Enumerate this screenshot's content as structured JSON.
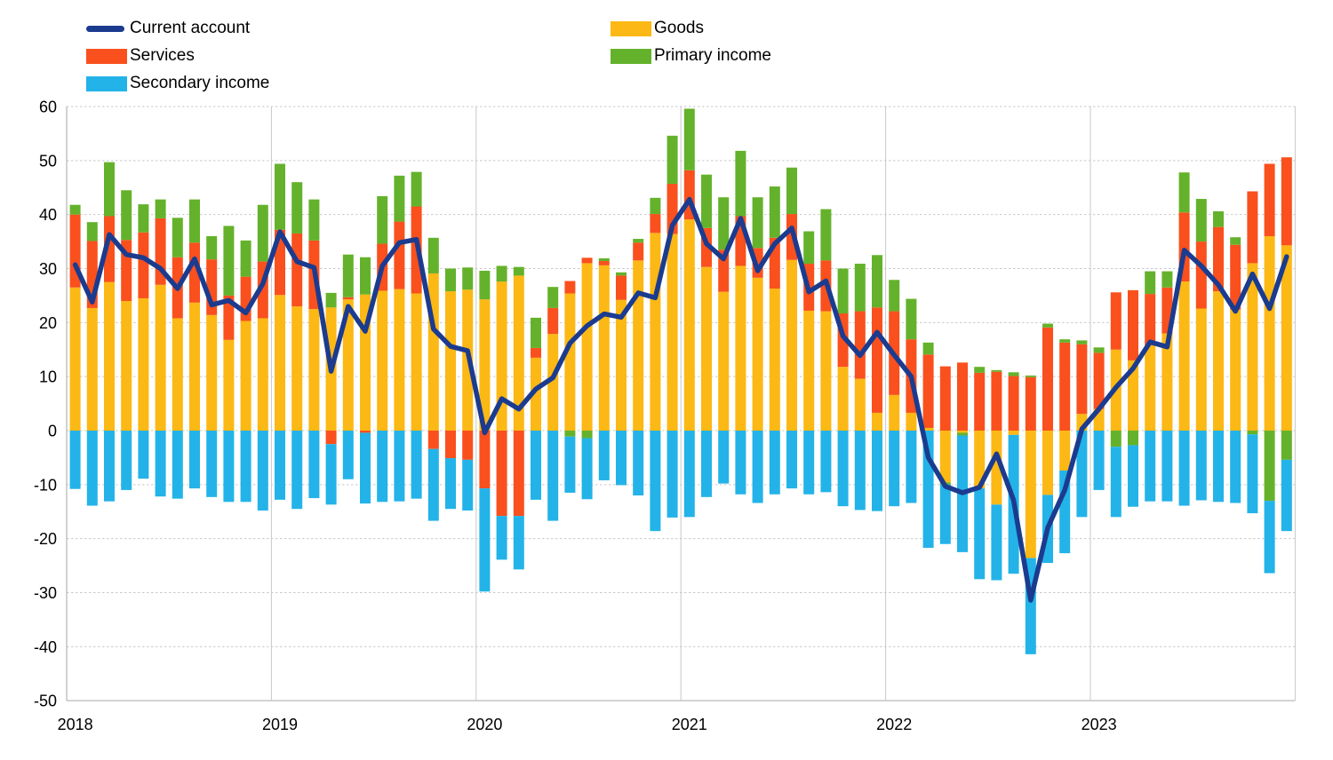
{
  "legend": {
    "items": [
      {
        "label": "Current account",
        "color": "#1b3b8f",
        "swatch": "line",
        "col": 1,
        "row": 1
      },
      {
        "label": "Services",
        "color": "#f9501e",
        "swatch": "box",
        "col": 1,
        "row": 2
      },
      {
        "label": "Secondary income",
        "color": "#23b3e8",
        "swatch": "box",
        "col": 1,
        "row": 3
      },
      {
        "label": "Goods",
        "color": "#fcb814",
        "swatch": "box",
        "col": 2,
        "row": 1
      },
      {
        "label": "Primary income",
        "color": "#64b22b",
        "swatch": "box",
        "col": 2,
        "row": 2
      }
    ]
  },
  "axes": {
    "y_ticks": [
      60,
      50,
      40,
      30,
      20,
      10,
      0,
      -10,
      -20,
      -30,
      -40,
      -50
    ],
    "x_ticks": [
      "2018",
      "2019",
      "2020",
      "2021",
      "2022",
      "2023"
    ]
  },
  "chart_data": {
    "type": "bar",
    "subtype": "stacked-bars-with-line",
    "title": "",
    "xlabel": "",
    "ylabel": "",
    "ylim": [
      -50,
      60
    ],
    "grid": true,
    "legend_position": "top",
    "categories": [
      "2018-01",
      "2018-02",
      "2018-03",
      "2018-04",
      "2018-05",
      "2018-06",
      "2018-07",
      "2018-08",
      "2018-09",
      "2018-10",
      "2018-11",
      "2018-12",
      "2019-01",
      "2019-02",
      "2019-03",
      "2019-04",
      "2019-05",
      "2019-06",
      "2019-07",
      "2019-08",
      "2019-09",
      "2019-10",
      "2019-11",
      "2019-12",
      "2020-01",
      "2020-02",
      "2020-03",
      "2020-04",
      "2020-05",
      "2020-06",
      "2020-07",
      "2020-08",
      "2020-09",
      "2020-10",
      "2020-11",
      "2020-12",
      "2021-01",
      "2021-02",
      "2021-03",
      "2021-04",
      "2021-05",
      "2021-06",
      "2021-07",
      "2021-08",
      "2021-09",
      "2021-10",
      "2021-11",
      "2021-12",
      "2022-01",
      "2022-02",
      "2022-03",
      "2022-04",
      "2022-05",
      "2022-06",
      "2022-07",
      "2022-08",
      "2022-09",
      "2022-10",
      "2022-11",
      "2022-12",
      "2023-01",
      "2023-02",
      "2023-03",
      "2023-04",
      "2023-05",
      "2023-06",
      "2023-07",
      "2023-08",
      "2023-09",
      "2023-10",
      "2023-11",
      "2023-12"
    ],
    "series": [
      {
        "name": "Goods",
        "type": "bar",
        "color": "#fcb814",
        "values": [
          26.5,
          22.7,
          27.5,
          24,
          24.5,
          27,
          20.8,
          23.7,
          21.4,
          16.8,
          20.3,
          20.8,
          25.1,
          23,
          22.5,
          22.8,
          24.3,
          25.2,
          25.9,
          26.2,
          25.4,
          29.1,
          25.8,
          26.1,
          24.3,
          27.6,
          28.7,
          13.5,
          17.9,
          25.4,
          31,
          30.6,
          24.2,
          31.5,
          36.6,
          36.4,
          39.1,
          30.3,
          25.7,
          30.5,
          28.3,
          26.3,
          31.6,
          22.2,
          22.1,
          11.8,
          9.6,
          3.3,
          6.6,
          3.3,
          0.5,
          -9.6,
          -0.4,
          -10.7,
          -13.7,
          -0.8,
          -23.6,
          -11.9,
          -7.4,
          3.1,
          4,
          15,
          13,
          15.8,
          18,
          27.6,
          22.6,
          25.8,
          22.4,
          31,
          36,
          34.3
        ]
      },
      {
        "name": "Services",
        "type": "bar",
        "color": "#f9501e",
        "values": [
          13.5,
          12.4,
          12.2,
          11.3,
          12.2,
          12.3,
          11.3,
          11.1,
          10.3,
          8.2,
          8.2,
          10.5,
          12.1,
          13.5,
          12.7,
          -2.5,
          0.4,
          -0.4,
          8.7,
          12.5,
          16.1,
          -3.4,
          -5.1,
          -5.4,
          -10.7,
          -15.8,
          -15.8,
          1.8,
          4.8,
          2.3,
          1,
          0.8,
          4.5,
          3.3,
          3.5,
          9.3,
          9.1,
          7.2,
          7.8,
          9.2,
          5.5,
          9.4,
          8.5,
          8.7,
          9.4,
          9.9,
          12.5,
          19.5,
          15.5,
          13.6,
          13.6,
          11.9,
          12.6,
          10.7,
          10.9,
          10.1,
          9.9,
          19.1,
          16.3,
          12.9,
          10.4,
          10.6,
          13,
          9.5,
          8.5,
          12.8,
          12.4,
          11.9,
          12,
          13.3,
          13.4,
          16.3
        ]
      },
      {
        "name": "Primary income",
        "type": "bar",
        "color": "#64b22b",
        "values": [
          1.8,
          3.5,
          10,
          9.2,
          5.2,
          3.5,
          7.3,
          8,
          4.3,
          12.9,
          6.7,
          10.5,
          12.2,
          9.5,
          7.6,
          2.7,
          7.9,
          6.9,
          8.8,
          8.5,
          6.4,
          6.6,
          4.2,
          4.1,
          5.3,
          2.9,
          1.6,
          5.6,
          3.9,
          -1.1,
          -1.4,
          0.5,
          0.6,
          0.7,
          3,
          8.9,
          11.4,
          9.9,
          9.7,
          12.1,
          9.4,
          9.5,
          8.6,
          6,
          9.5,
          8.3,
          8.8,
          9.7,
          5.8,
          7.5,
          2.2,
          -0.4,
          -0.5,
          1.1,
          0.3,
          0.7,
          0.3,
          0.7,
          0.6,
          0.7,
          1,
          -3,
          -2.7,
          4.2,
          3,
          7.4,
          7.9,
          2.9,
          1.4,
          -0.7,
          -13,
          -5.4
        ]
      },
      {
        "name": "Secondary income",
        "type": "bar",
        "color": "#23b3e8",
        "values": [
          -10.8,
          -13.9,
          -13.1,
          -11,
          -8.9,
          -12.2,
          -12.6,
          -10.7,
          -12.3,
          -13.2,
          -13.2,
          -14.8,
          -12.8,
          -14.5,
          -12.5,
          -11.2,
          -9,
          -13.1,
          -13.2,
          -13.1,
          -12.6,
          -13.3,
          -9.4,
          -9.4,
          -19.1,
          -8.1,
          -9.9,
          -12.8,
          -16.7,
          -10.4,
          -11.3,
          -9.2,
          -10.1,
          -12,
          -18.6,
          -16.1,
          -16,
          -12.3,
          -9.8,
          -11.8,
          -13.4,
          -11.8,
          -10.7,
          -11.8,
          -11.4,
          -14,
          -14.7,
          -14.9,
          -14,
          -13.4,
          -21.7,
          -11,
          -21.6,
          -16.8,
          -14,
          -25.7,
          -17.8,
          -12.6,
          -15.3,
          -16,
          -11,
          -13,
          -11.4,
          -13.1,
          -13.1,
          -13.9,
          -12.9,
          -13.2,
          -13.4,
          -14.6,
          -13.4,
          -13.2
        ]
      },
      {
        "name": "Current account",
        "type": "line",
        "color": "#1b3b8f",
        "values": [
          30.7,
          23.8,
          36.3,
          32.6,
          32,
          30,
          26.3,
          31.8,
          23.3,
          24.1,
          21.8,
          27.2,
          36.8,
          31.3,
          30.2,
          11,
          23,
          18.4,
          30.5,
          34.8,
          35.4,
          18.8,
          15.6,
          14.8,
          -0.4,
          5.9,
          4,
          7.7,
          9.8,
          16.2,
          19.4,
          21.6,
          21,
          25.5,
          24.6,
          38,
          42.8,
          34.6,
          31.8,
          39.3,
          29.6,
          34.6,
          37.5,
          25.7,
          27.7,
          17.5,
          13.9,
          18.2,
          14,
          10,
          -5,
          -10.3,
          -11.5,
          -10.5,
          -4.3,
          -12.9,
          -31.4,
          -18,
          -11,
          0.3,
          4,
          8,
          11.5,
          16.4,
          15.5,
          33.4,
          30.5,
          27,
          22.1,
          29,
          22.6,
          32.2
        ]
      }
    ]
  },
  "style": {
    "grid_color": "#c9c9c9",
    "axis_color": "#a6a6a6",
    "tick_label_color": "#000000",
    "background": "#ffffff"
  }
}
